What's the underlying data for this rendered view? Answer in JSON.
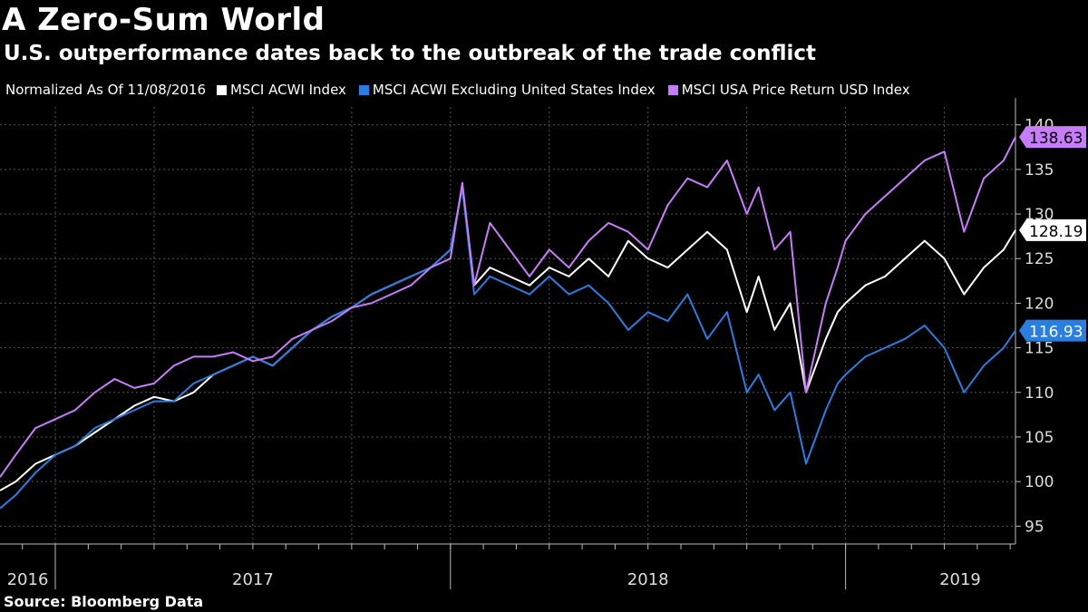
{
  "title": "A Zero-Sum World",
  "subtitle": "U.S. outperformance dates back to the outbreak of the trade conflict",
  "source": "Source: Bloomberg Data",
  "legend": {
    "note": "Normalized As Of 11/08/2016",
    "items": [
      {
        "label": "MSCI ACWI Index",
        "color": "#ffffff"
      },
      {
        "label": "MSCI ACWI Excluding United States Index",
        "color": "#2a7de1"
      },
      {
        "label": "MSCI USA Price Return USD Index",
        "color": "#c77dfa"
      }
    ]
  },
  "chart_data": {
    "type": "line",
    "title": "A Zero-Sum World",
    "subtitle": "U.S. outperformance dates back to the outbreak of the trade conflict",
    "xlabel": "",
    "ylabel": "",
    "xlim": [
      2016.86,
      2019.43
    ],
    "ylim": [
      93,
      142
    ],
    "y_ticks": [
      95,
      100,
      105,
      110,
      115,
      120,
      125,
      130,
      135,
      140
    ],
    "x_year_labels": [
      {
        "label": "2016",
        "x": 2016.93
      },
      {
        "label": "2017",
        "x": 2017.5
      },
      {
        "label": "2018",
        "x": 2018.5
      },
      {
        "label": "2019",
        "x": 2019.29
      }
    ],
    "x_year_boundaries": [
      2017.0,
      2018.0,
      2019.0
    ],
    "grid": true,
    "series": [
      {
        "name": "MSCI ACWI Index",
        "color": "#ffffff",
        "last_value": 128.19,
        "x": [
          2016.86,
          2016.9,
          2016.95,
          2017.0,
          2017.05,
          2017.1,
          2017.15,
          2017.2,
          2017.25,
          2017.3,
          2017.35,
          2017.4,
          2017.45,
          2017.5,
          2017.55,
          2017.6,
          2017.65,
          2017.7,
          2017.75,
          2017.8,
          2017.85,
          2017.9,
          2017.95,
          2018.0,
          2018.03,
          2018.06,
          2018.1,
          2018.15,
          2018.2,
          2018.25,
          2018.3,
          2018.35,
          2018.4,
          2018.45,
          2018.5,
          2018.55,
          2018.6,
          2018.65,
          2018.7,
          2018.75,
          2018.78,
          2018.82,
          2018.86,
          2018.9,
          2018.95,
          2018.98,
          2019.0,
          2019.05,
          2019.1,
          2019.15,
          2019.2,
          2019.25,
          2019.3,
          2019.35,
          2019.4,
          2019.43
        ],
        "y": [
          99,
          100,
          102,
          103,
          104,
          105.5,
          107,
          108.5,
          109.5,
          109,
          110,
          112,
          113,
          114,
          113,
          115,
          117,
          118.5,
          119.5,
          121,
          122,
          123,
          124,
          126,
          133,
          122,
          124,
          123,
          122,
          124,
          123,
          125,
          123,
          127,
          125,
          124,
          126,
          128,
          126,
          119,
          123,
          117,
          120,
          110,
          116,
          119,
          120,
          122,
          123,
          125,
          127,
          125,
          121,
          124,
          126,
          128.19
        ]
      },
      {
        "name": "MSCI ACWI Excluding United States Index",
        "color": "#2a7de1",
        "last_value": 116.93,
        "x": [
          2016.86,
          2016.9,
          2016.95,
          2017.0,
          2017.05,
          2017.1,
          2017.15,
          2017.2,
          2017.25,
          2017.3,
          2017.35,
          2017.4,
          2017.45,
          2017.5,
          2017.55,
          2017.6,
          2017.65,
          2017.7,
          2017.75,
          2017.8,
          2017.85,
          2017.9,
          2017.95,
          2018.0,
          2018.03,
          2018.06,
          2018.1,
          2018.15,
          2018.2,
          2018.25,
          2018.3,
          2018.35,
          2018.4,
          2018.45,
          2018.5,
          2018.55,
          2018.6,
          2018.65,
          2018.7,
          2018.75,
          2018.78,
          2018.82,
          2018.86,
          2018.9,
          2018.95,
          2018.98,
          2019.0,
          2019.05,
          2019.1,
          2019.15,
          2019.2,
          2019.25,
          2019.3,
          2019.35,
          2019.4,
          2019.43
        ],
        "y": [
          97,
          98.5,
          101,
          103,
          104,
          106,
          107,
          108,
          109,
          109,
          111,
          112,
          113,
          114,
          113,
          115,
          117,
          118.5,
          119.5,
          121,
          122,
          123,
          124,
          126,
          133,
          121,
          123,
          122,
          121,
          123,
          121,
          122,
          120,
          117,
          119,
          118,
          121,
          116,
          119,
          110,
          112,
          108,
          110,
          102,
          108,
          111,
          112,
          114,
          115,
          116,
          117.5,
          115,
          110,
          113,
          115,
          116.93
        ]
      },
      {
        "name": "MSCI USA Price Return USD Index",
        "color": "#c77dfa",
        "last_value": 138.63,
        "x": [
          2016.86,
          2016.9,
          2016.95,
          2017.0,
          2017.05,
          2017.1,
          2017.15,
          2017.2,
          2017.25,
          2017.3,
          2017.35,
          2017.4,
          2017.45,
          2017.5,
          2017.55,
          2017.6,
          2017.65,
          2017.7,
          2017.75,
          2017.8,
          2017.85,
          2017.9,
          2017.95,
          2018.0,
          2018.03,
          2018.06,
          2018.1,
          2018.15,
          2018.2,
          2018.25,
          2018.3,
          2018.35,
          2018.4,
          2018.45,
          2018.5,
          2018.55,
          2018.6,
          2018.65,
          2018.7,
          2018.75,
          2018.78,
          2018.82,
          2018.86,
          2018.9,
          2018.95,
          2018.98,
          2019.0,
          2019.05,
          2019.1,
          2019.15,
          2019.2,
          2019.25,
          2019.3,
          2019.35,
          2019.4,
          2019.43
        ],
        "y": [
          100.5,
          103,
          106,
          107,
          108,
          110,
          111.5,
          110.5,
          111,
          113,
          114,
          114,
          114.5,
          113.5,
          114,
          116,
          117,
          118,
          119.5,
          120,
          121,
          122,
          124,
          125,
          133.5,
          122,
          129,
          126,
          123,
          126,
          124,
          127,
          129,
          128,
          126,
          131,
          134,
          133,
          136,
          130,
          133,
          126,
          128,
          110,
          120,
          124,
          127,
          130,
          132,
          134,
          136,
          137,
          128,
          134,
          136,
          138.63
        ]
      }
    ]
  }
}
